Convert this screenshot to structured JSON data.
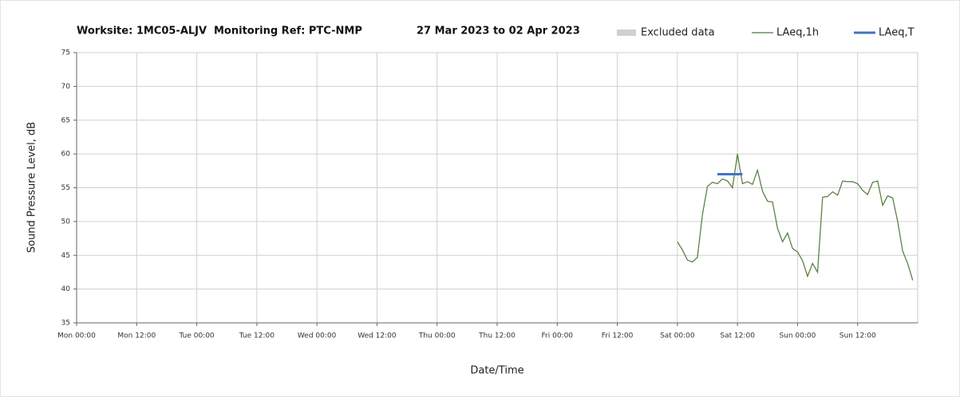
{
  "chart_data": {
    "type": "line",
    "header": [
      "Worksite: 1MC05-ALJV",
      "Monitoring Ref: PTC-NMP",
      "27 Mar 2023 to 02 Apr 2023"
    ],
    "x_label": "Date/Time",
    "y_label": "Sound Pressure Level, dB",
    "xlim": [
      0,
      168
    ],
    "ylim": [
      35,
      75
    ],
    "yticks": [
      35,
      40,
      45,
      50,
      55,
      60,
      65,
      70,
      75
    ],
    "xticks": [
      {
        "value": 0,
        "label": "Mon 00:00"
      },
      {
        "value": 12,
        "label": "Mon 12:00"
      },
      {
        "value": 24,
        "label": "Tue 00:00"
      },
      {
        "value": 36,
        "label": "Tue 12:00"
      },
      {
        "value": 48,
        "label": "Wed 00:00"
      },
      {
        "value": 60,
        "label": "Wed 12:00"
      },
      {
        "value": 72,
        "label": "Thu 00:00"
      },
      {
        "value": 84,
        "label": "Thu 12:00"
      },
      {
        "value": 96,
        "label": "Fri 00:00"
      },
      {
        "value": 108,
        "label": "Fri 12:00"
      },
      {
        "value": 120,
        "label": "Sat 00:00"
      },
      {
        "value": 132,
        "label": "Sat 12:00"
      },
      {
        "value": 144,
        "label": "Sun 00:00"
      },
      {
        "value": 156,
        "label": "Sun 12:00"
      }
    ],
    "grid": true,
    "legend": "top-right",
    "series": [
      {
        "name": "Excluded data",
        "color": "#d0d0d0",
        "kind": "area",
        "x": [],
        "values": []
      },
      {
        "name": "LAeq,1h",
        "color": "#4e7a3a",
        "kind": "line",
        "x": [
          120,
          121,
          122,
          123,
          124,
          125,
          126,
          127,
          128,
          129,
          130,
          131,
          132,
          133,
          134,
          135,
          136,
          137,
          138,
          139,
          140,
          141,
          142,
          143,
          144,
          145,
          146,
          147,
          148,
          149,
          150,
          151,
          152,
          153,
          154,
          155,
          156,
          157,
          158,
          159,
          160,
          161,
          162,
          163,
          164,
          165,
          166,
          167
        ],
        "values": [
          47.0,
          45.8,
          44.3,
          44.0,
          44.7,
          51.0,
          55.2,
          55.8,
          55.6,
          56.3,
          56.0,
          55.0,
          60.0,
          55.6,
          55.9,
          55.5,
          57.6,
          54.5,
          53.0,
          52.9,
          49.0,
          47.0,
          48.3,
          46.0,
          45.5,
          44.2,
          41.9,
          43.8,
          42.5,
          53.6,
          53.7,
          54.4,
          53.9,
          56.0,
          55.9,
          55.9,
          55.6,
          54.6,
          54.0,
          55.8,
          56.0,
          52.4,
          53.8,
          53.5,
          50.0,
          45.6,
          43.8,
          41.3
        ]
      },
      {
        "name": "LAeq,T",
        "color": "#4472c4",
        "kind": "line",
        "x": [
          128,
          133
        ],
        "values": [
          57.0,
          57.0
        ]
      }
    ]
  }
}
